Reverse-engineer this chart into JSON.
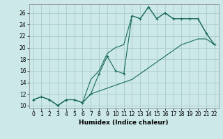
{
  "xlabel": "Humidex (Indice chaleur)",
  "bg_color": "#cce8e8",
  "grid_color": "#aacccc",
  "line_color": "#1a6b5a",
  "xlim": [
    -0.5,
    22.5
  ],
  "ylim": [
    9.5,
    27.5
  ],
  "x_ticks": [
    0,
    1,
    2,
    3,
    4,
    5,
    6,
    7,
    8,
    9,
    10,
    11,
    12,
    13,
    14,
    15,
    16,
    17,
    18,
    19,
    20,
    21,
    22
  ],
  "y_ticks": [
    10,
    12,
    14,
    16,
    18,
    20,
    22,
    24,
    26
  ],
  "hours": [
    0,
    1,
    2,
    3,
    4,
    5,
    6,
    7,
    8,
    9,
    10,
    11,
    12,
    13,
    14,
    15,
    16,
    17,
    18,
    19,
    20,
    21,
    22
  ],
  "line_main": [
    11,
    11.5,
    11,
    10,
    11,
    11,
    10.5,
    12,
    15.5,
    18.5,
    16,
    15.5,
    25.5,
    25,
    27,
    25,
    26,
    25,
    25,
    25,
    25,
    22.5,
    20.5
  ],
  "line_lower": [
    11,
    11.5,
    11,
    10,
    11,
    11,
    10.5,
    12,
    12.5,
    13,
    13.5,
    14,
    14.5,
    15.5,
    16.5,
    17.5,
    18.5,
    19.5,
    20.5,
    21,
    21.5,
    21.5,
    20.5
  ],
  "line_upper": [
    11,
    11.5,
    11,
    10,
    11,
    11,
    10.5,
    14.5,
    16,
    19,
    20,
    20.5,
    25.5,
    25,
    27,
    25,
    26,
    25,
    25,
    25,
    25,
    22.5,
    20.5
  ],
  "xlabel_fontsize": 6.5,
  "tick_fontsize": 5.5
}
